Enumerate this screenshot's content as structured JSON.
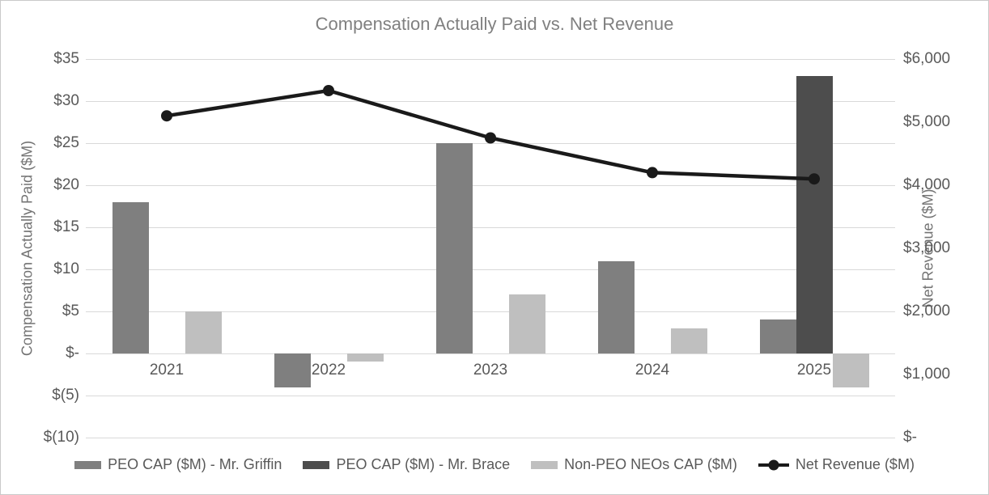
{
  "chart_data": {
    "type": "combo-bar-line",
    "title": "Compensation Actually Paid vs. Net Revenue",
    "categories": [
      "2021",
      "2022",
      "2023",
      "2024",
      "2025"
    ],
    "series": [
      {
        "name": "PEO CAP ($M) - Mr. Griffin",
        "kind": "bar",
        "axis": "left",
        "color": "#7f7f7f",
        "values": [
          18,
          -4,
          25,
          11,
          4
        ]
      },
      {
        "name": "PEO CAP ($M) - Mr. Brace",
        "kind": "bar",
        "axis": "left",
        "color": "#4d4d4d",
        "values": [
          0,
          0,
          0,
          0,
          33
        ]
      },
      {
        "name": "Non-PEO NEOs CAP ($M)",
        "kind": "bar",
        "axis": "left",
        "color": "#bfbfbf",
        "values": [
          5,
          -1,
          7,
          3,
          -4
        ]
      },
      {
        "name": "Net Revenue ($M)",
        "kind": "line",
        "axis": "right",
        "color": "#1a1a1a",
        "values": [
          5100,
          5500,
          4750,
          4200,
          4100
        ]
      }
    ],
    "left_axis": {
      "title": "Compensation Actually Paid ($M)",
      "min": -10,
      "max": 35,
      "step": 5,
      "tick_labels": [
        "$35",
        "$30",
        "$25",
        "$20",
        "$15",
        "$10",
        "$5",
        "$-",
        "$(5)",
        "$(10)"
      ]
    },
    "right_axis": {
      "title": "Net Revenue ($M)",
      "min": 0,
      "max": 6000,
      "step": 1000,
      "tick_labels": [
        "$6,000",
        "$5,000",
        "$4,000",
        "$3,000",
        "$2,000",
        "$1,000",
        "$-"
      ]
    },
    "grid": true,
    "legend_position": "bottom",
    "colors": {
      "gridline": "#d9d9d9",
      "tick_text": "#595959",
      "title_text": "#808080",
      "axis_title_text": "#737373",
      "frame_border": "#c9c9c9",
      "background": "#ffffff"
    }
  }
}
